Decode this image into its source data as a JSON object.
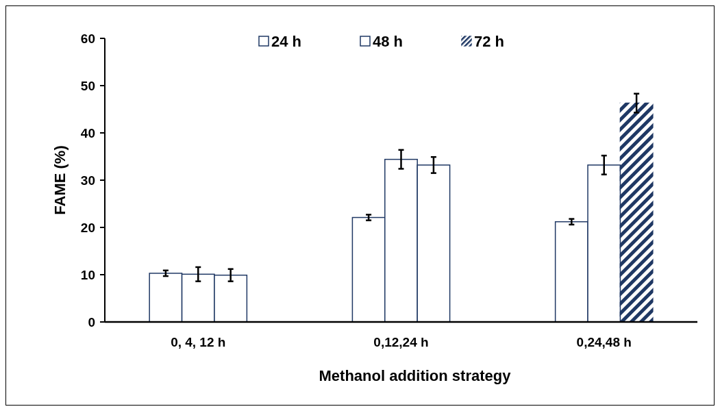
{
  "chart_data": {
    "type": "bar",
    "xlabel": "Methanol addition strategy",
    "ylabel": "FAME (%)",
    "categories": [
      "0, 4, 12 h",
      "0,12,24 h",
      "0,24,48 h"
    ],
    "series": [
      {
        "name": "24 h",
        "color": "#ffffff",
        "values": [
          10.3,
          22.1,
          21.2
        ],
        "errors": [
          0.6,
          0.6,
          0.6
        ]
      },
      {
        "name": "48 h",
        "color": "#ffffff",
        "values": [
          10.1,
          34.4,
          33.2
        ],
        "errors": [
          1.5,
          2.0,
          2.0
        ]
      },
      {
        "name": "72 h",
        "color": "#1f3864",
        "colors": [
          "#ffffff",
          "#ffffff",
          "#1f3864"
        ],
        "values": [
          9.9,
          33.2,
          46.3
        ],
        "errors": [
          1.3,
          1.7,
          2.0
        ]
      }
    ],
    "ylim": [
      0,
      60
    ],
    "yticks": [
      0,
      10,
      20,
      30,
      40,
      50,
      60
    ],
    "grid": false,
    "legend": "top"
  }
}
